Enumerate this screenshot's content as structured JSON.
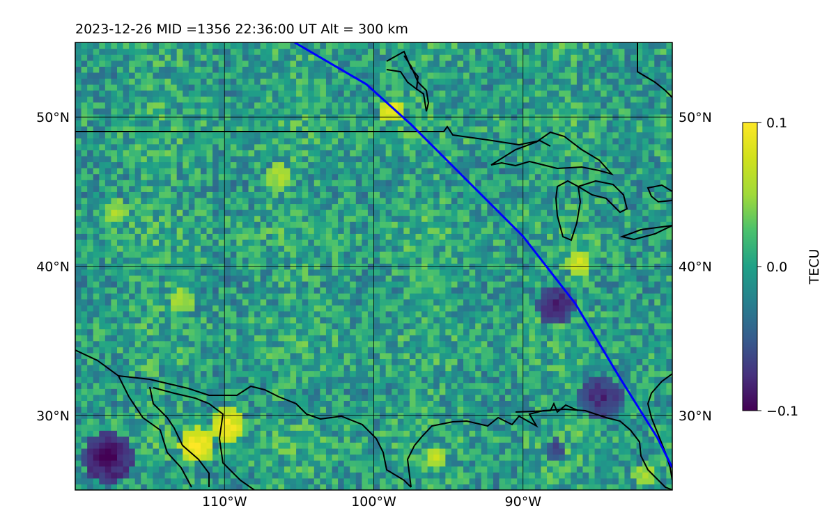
{
  "title": "2023-12-26  MID =1356    22:36:00  UT  Alt = 300 km",
  "chart_data": {
    "type": "heatmap",
    "title": "2023-12-26  MID =1356    22:36:00  UT  Alt = 300 km",
    "projection": "map",
    "lon_range": [
      -120,
      -80
    ],
    "lat_range": [
      25,
      55
    ],
    "x_ticks": [
      {
        "value": -110,
        "label": "110°W"
      },
      {
        "value": -100,
        "label": "100°W"
      },
      {
        "value": -90,
        "label": "90°W"
      }
    ],
    "y_ticks": [
      {
        "value": 30,
        "label": "30°N"
      },
      {
        "value": 40,
        "label": "40°N"
      },
      {
        "value": 50,
        "label": "50°N"
      }
    ],
    "grid": true,
    "colormap": "viridis",
    "colorbar": {
      "label": "TECU",
      "min": -0.1,
      "max": 0.1,
      "ticks": [
        {
          "value": 0.1,
          "label": "0.1"
        },
        {
          "value": 0.0,
          "label": "0.0"
        },
        {
          "value": -0.1,
          "label": "−0.1"
        }
      ]
    },
    "track_color": "#0000ff",
    "track": [
      {
        "lon": -105.3,
        "lat": 55.0
      },
      {
        "lon": -100.5,
        "lat": 52.2
      },
      {
        "lon": -97.5,
        "lat": 49.5
      },
      {
        "lon": -94.0,
        "lat": 46.0
      },
      {
        "lon": -90.0,
        "lat": 42.0
      },
      {
        "lon": -86.5,
        "lat": 37.5
      },
      {
        "lon": -83.5,
        "lat": 32.5
      },
      {
        "lon": -81.0,
        "lat": 28.5
      },
      {
        "lon": -80.0,
        "lat": 26.5
      }
    ],
    "hotspots": [
      {
        "lon": -118.0,
        "lat": 27.0,
        "value": -0.1,
        "radius": 1.7
      },
      {
        "lon": -112.0,
        "lat": 27.8,
        "value": 0.1,
        "radius": 1.2
      },
      {
        "lon": -110.0,
        "lat": 29.2,
        "value": 0.1,
        "radius": 1.1
      },
      {
        "lon": -99.0,
        "lat": 50.2,
        "value": 0.1,
        "radius": 0.8
      },
      {
        "lon": -88.0,
        "lat": 37.2,
        "value": -0.09,
        "radius": 1.3
      },
      {
        "lon": -86.5,
        "lat": 40.0,
        "value": 0.08,
        "radius": 0.8
      },
      {
        "lon": -85.0,
        "lat": 31.0,
        "value": -0.08,
        "radius": 1.5
      },
      {
        "lon": -117.5,
        "lat": 43.5,
        "value": 0.06,
        "radius": 0.8
      },
      {
        "lon": -113.0,
        "lat": 37.5,
        "value": 0.06,
        "radius": 0.9
      },
      {
        "lon": -106.5,
        "lat": 45.8,
        "value": 0.06,
        "radius": 0.9
      },
      {
        "lon": -96.0,
        "lat": 27.0,
        "value": 0.07,
        "radius": 0.7
      },
      {
        "lon": -88.0,
        "lat": 27.5,
        "value": -0.07,
        "radius": 0.8
      },
      {
        "lon": -82.0,
        "lat": 25.8,
        "value": 0.06,
        "radius": 0.8
      }
    ]
  }
}
